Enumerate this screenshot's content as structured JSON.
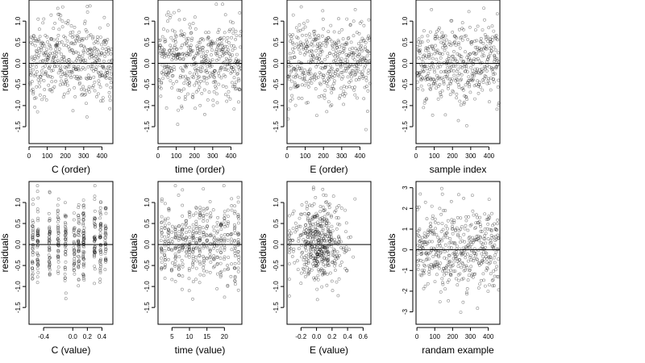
{
  "chart_data": [
    {
      "type": "scatter",
      "xlabel": "C (order)",
      "ylabel": "residuals",
      "xlim": [
        0,
        460
      ],
      "ylim": [
        -1.9,
        1.5
      ],
      "xticks": [
        0,
        100,
        200,
        300,
        400
      ],
      "xticklabels": [
        "0",
        "100",
        "200",
        "300",
        "400"
      ],
      "yticks": [
        -1.5,
        -1.0,
        -0.5,
        0.0,
        0.5,
        1.0
      ],
      "yticklabels": [
        "-1.5",
        "-1.0",
        "-0.5",
        "0.0",
        "0.5",
        "1.0"
      ],
      "hline": 0,
      "n": 460,
      "pattern": "order_c",
      "grid": false
    },
    {
      "type": "scatter",
      "xlabel": "time (order)",
      "ylabel": "residuals",
      "xlim": [
        0,
        460
      ],
      "ylim": [
        -1.9,
        1.5
      ],
      "xticks": [
        0,
        100,
        200,
        300,
        400
      ],
      "xticklabels": [
        "0",
        "100",
        "200",
        "300",
        "400"
      ],
      "yticks": [
        -1.5,
        -1.0,
        -0.5,
        0.0,
        0.5,
        1.0
      ],
      "yticklabels": [
        "-1.5",
        "-1.0",
        "-0.5",
        "0.0",
        "0.5",
        "1.0"
      ],
      "hline": 0,
      "n": 460,
      "pattern": "order_time",
      "grid": false
    },
    {
      "type": "scatter",
      "xlabel": "E (order)",
      "ylabel": "residuals",
      "xlim": [
        0,
        460
      ],
      "ylim": [
        -1.9,
        1.5
      ],
      "xticks": [
        0,
        100,
        200,
        300,
        400
      ],
      "xticklabels": [
        "0",
        "100",
        "200",
        "300",
        "400"
      ],
      "yticks": [
        -1.5,
        -1.0,
        -0.5,
        0.0,
        0.5,
        1.0
      ],
      "yticklabels": [
        "-1.5",
        "-1.0",
        "-0.5",
        "0.0",
        "0.5",
        "1.0"
      ],
      "hline": 0,
      "n": 460,
      "pattern": "order_e",
      "grid": false
    },
    {
      "type": "scatter",
      "xlabel": "sample index",
      "ylabel": "residuals",
      "xlim": [
        0,
        460
      ],
      "ylim": [
        -1.9,
        1.5
      ],
      "xticks": [
        0,
        100,
        200,
        300,
        400
      ],
      "xticklabels": [
        "0",
        "100",
        "200",
        "300",
        "400"
      ],
      "yticks": [
        -1.5,
        -1.0,
        -0.5,
        0.0,
        0.5,
        1.0
      ],
      "yticklabels": [
        "-1.5",
        "-1.0",
        "-0.5",
        "0.0",
        "0.5",
        "1.0"
      ],
      "hline": 0,
      "n": 460,
      "pattern": "order_idx",
      "grid": false
    },
    {
      "type": "scatter",
      "xlabel": "C (value)",
      "ylabel": "residuals",
      "xlim": [
        -0.6,
        0.55
      ],
      "ylim": [
        -1.9,
        1.5
      ],
      "xticks": [
        -0.4,
        0.0,
        0.2,
        0.4
      ],
      "xticklabels": [
        "-0.4",
        "0.0",
        "0.2",
        "0.4"
      ],
      "yticks": [
        -1.5,
        -1.0,
        -0.5,
        0.0,
        0.5,
        1.0
      ],
      "yticklabels": [
        "-1.5",
        "-1.0",
        "-0.5",
        "0.0",
        "0.5",
        "1.0"
      ],
      "hline": 0,
      "n": 460,
      "pattern": "value_c",
      "x_levels": [
        -0.55,
        -0.48,
        -0.32,
        -0.2,
        -0.1,
        0.02,
        0.08,
        0.15,
        0.3,
        0.38,
        0.45
      ],
      "grid": false
    },
    {
      "type": "scatter",
      "xlabel": "time (value)",
      "ylabel": "residuals",
      "xlim": [
        1,
        25
      ],
      "ylim": [
        -1.9,
        1.5
      ],
      "xticks": [
        5,
        10,
        15,
        20
      ],
      "xticklabels": [
        "5",
        "10",
        "15",
        "20"
      ],
      "yticks": [
        -1.5,
        -1.0,
        -0.5,
        0.0,
        0.5,
        1.0
      ],
      "yticklabels": [
        "-1.5",
        "-1.0",
        "-0.5",
        "0.0",
        "0.5",
        "1.0"
      ],
      "hline": 0,
      "n": 460,
      "pattern": "value_time",
      "x_levels": [
        2,
        3,
        4,
        5,
        6,
        7,
        8,
        9,
        10,
        11,
        12,
        13,
        14,
        15,
        16,
        17,
        18,
        19,
        20,
        21,
        22,
        23,
        24
      ],
      "grid": false
    },
    {
      "type": "scatter",
      "xlabel": "E (value)",
      "ylabel": "residuals",
      "xlim": [
        -0.38,
        0.7
      ],
      "ylim": [
        -1.9,
        1.5
      ],
      "xticks": [
        -0.2,
        0.0,
        0.2,
        0.4,
        0.6
      ],
      "xticklabels": [
        "-0.2",
        "0.0",
        "0.2",
        "0.4",
        "0.6"
      ],
      "yticks": [
        -1.5,
        -1.0,
        -0.5,
        0.0,
        0.5,
        1.0
      ],
      "yticklabels": [
        "-1.5",
        "-1.0",
        "-0.5",
        "0.0",
        "0.5",
        "1.0"
      ],
      "hline": 0,
      "n": 460,
      "pattern": "value_e",
      "grid": false
    },
    {
      "type": "scatter",
      "xlabel": "randam example",
      "ylabel": "residuals",
      "xlim": [
        -5,
        465
      ],
      "ylim": [
        -3.6,
        3.3
      ],
      "xticks": [
        0,
        100,
        200,
        300,
        400
      ],
      "xticklabels": [
        "0",
        "100",
        "200",
        "300",
        "400"
      ],
      "yticks": [
        -3,
        -2,
        -1,
        0,
        1,
        2,
        3
      ],
      "yticklabels": [
        "-3",
        "-2",
        "-1",
        "0",
        "1",
        "2",
        "3"
      ],
      "hline": 0,
      "n": 460,
      "pattern": "random",
      "grid": false
    }
  ]
}
